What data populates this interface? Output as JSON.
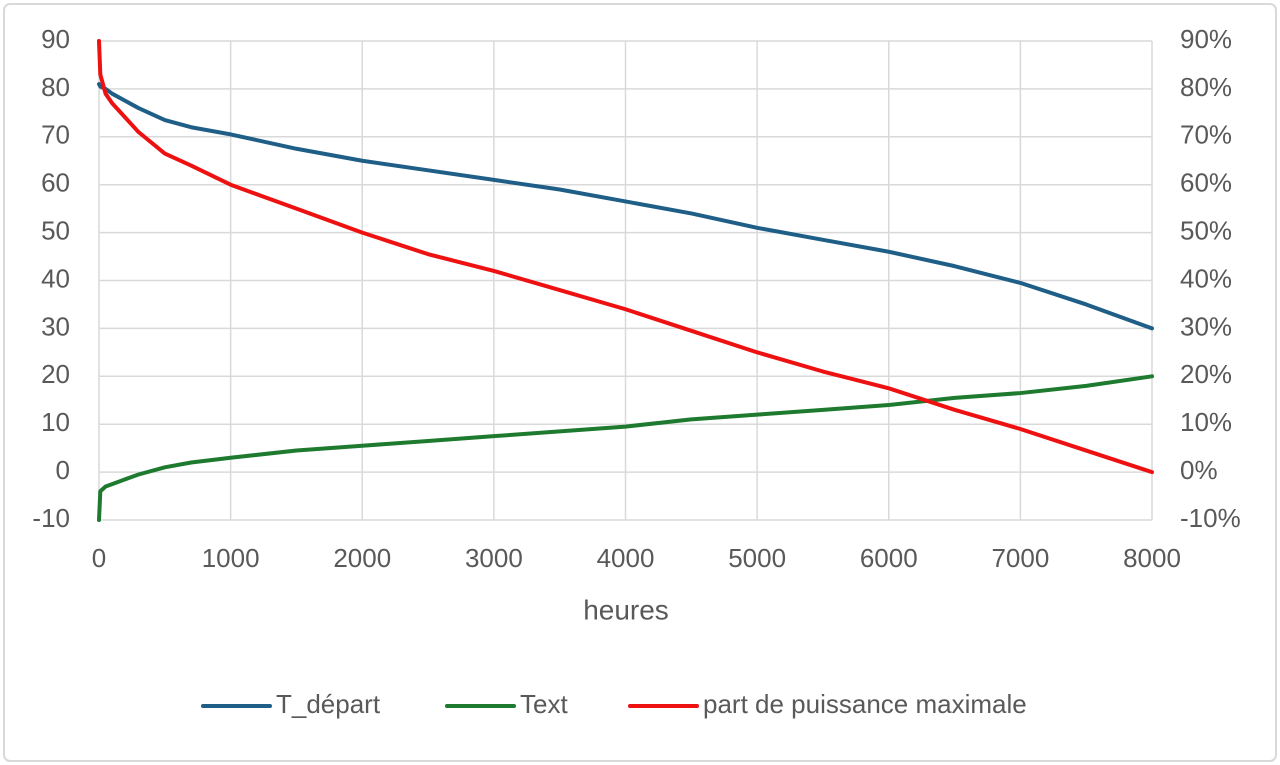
{
  "chart_data": {
    "type": "line",
    "x_label": "heures",
    "x": [
      0,
      10,
      50,
      100,
      200,
      300,
      500,
      700,
      1000,
      1500,
      2000,
      2500,
      3000,
      3500,
      4000,
      4500,
      5000,
      5500,
      6000,
      6500,
      7000,
      7500,
      8000
    ],
    "series": [
      {
        "name": "T_départ",
        "color": "#1f5f87",
        "values": [
          81,
          80.5,
          80,
          79,
          77.5,
          76,
          73.5,
          72,
          70.5,
          67.5,
          65,
          63,
          61,
          59,
          56.5,
          54,
          51,
          48.5,
          46,
          43,
          39.5,
          35,
          30
        ]
      },
      {
        "name": "Text",
        "color": "#1e7a2e",
        "values": [
          -10,
          -4,
          -3,
          -2.5,
          -1.5,
          -0.5,
          1,
          2,
          3,
          4.5,
          5.5,
          6.5,
          7.5,
          8.5,
          9.5,
          11,
          12,
          13,
          14,
          15.5,
          16.5,
          18,
          20
        ]
      },
      {
        "name": "part de puissance maximale",
        "color": "#ee1111",
        "axis": "y2",
        "values": [
          90,
          83,
          79,
          77,
          74,
          71,
          66.5,
          64,
          60,
          55,
          50,
          45.5,
          42,
          38,
          34,
          29.5,
          25,
          21,
          17.5,
          13,
          9,
          4.5,
          0
        ]
      }
    ],
    "xlim": [
      0,
      8000
    ],
    "xticks": [
      0,
      1000,
      2000,
      3000,
      4000,
      5000,
      6000,
      7000,
      8000
    ],
    "ylim": [
      -10,
      90
    ],
    "yticks": [
      -10,
      0,
      10,
      20,
      30,
      40,
      50,
      60,
      70,
      80,
      90
    ],
    "y2lim": [
      -10,
      90
    ],
    "y2ticks": [
      {
        "value": -10,
        "label": "-10%"
      },
      {
        "value": 0,
        "label": "0%"
      },
      {
        "value": 10,
        "label": "10%"
      },
      {
        "value": 20,
        "label": "20%"
      },
      {
        "value": 30,
        "label": "30%"
      },
      {
        "value": 40,
        "label": "40%"
      },
      {
        "value": 50,
        "label": "50%"
      },
      {
        "value": 60,
        "label": "60%"
      },
      {
        "value": 70,
        "label": "70%"
      },
      {
        "value": 80,
        "label": "80%"
      },
      {
        "value": 90,
        "label": "90%"
      }
    ],
    "grid": true,
    "legend": "bottom"
  }
}
